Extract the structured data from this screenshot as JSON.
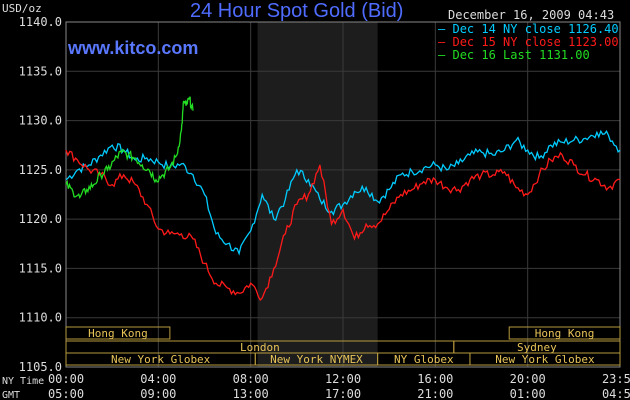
{
  "header": {
    "title": "24 Hour Spot Gold (Bid)",
    "site": "www.kitco.com",
    "y_unit": "USD/oz",
    "timestamp": "December 16, 2009 04:43"
  },
  "legend": [
    {
      "text": "Dec 14 NY close 1126.40",
      "color": "#00ccff"
    },
    {
      "text": "Dec 15 NY close 1123.00",
      "color": "#ff1a1a"
    },
    {
      "text": "Dec 16 Last 1131.00",
      "color": "#22dd22"
    }
  ],
  "axis_labels": {
    "row1_name": "NY Time",
    "row2_name": "GMT"
  },
  "chart_data": {
    "type": "line",
    "title": "24 Hour Spot Gold (Bid)",
    "ylabel": "USD/oz",
    "ylim": [
      1105,
      1140
    ],
    "y_ticks": [
      "1105.0",
      "1110.0",
      "1115.0",
      "1120.0",
      "1125.0",
      "1130.0",
      "1135.0",
      "1140.0"
    ],
    "xlim": [
      0,
      24
    ],
    "x_ticks_ny": [
      "00:00",
      "04:00",
      "08:00",
      "12:00",
      "16:00",
      "20:00",
      "23:59"
    ],
    "x_ticks_gmt": [
      "05:00",
      "09:00",
      "13:00",
      "17:00",
      "21:00",
      "01:00",
      "04:59"
    ],
    "grid": true,
    "legend_position": "top-right",
    "shaded_region": [
      8.3,
      13.5
    ],
    "sessions": [
      {
        "label": "Hong Kong",
        "row": 0,
        "start": 0,
        "end": 4.5
      },
      {
        "label": "Hong Kong",
        "row": 0,
        "start": 19.2,
        "end": 24
      },
      {
        "label": "London",
        "row": 1,
        "start": 0,
        "end": 16.8
      },
      {
        "label": "Sydney",
        "row": 1,
        "start": 16.8,
        "end": 24
      },
      {
        "label": "New York Globex",
        "row": 2,
        "start": 0,
        "end": 8.2
      },
      {
        "label": "New York NYMEX",
        "row": 2,
        "start": 8.2,
        "end": 13.5
      },
      {
        "label": "NY Globex",
        "row": 2,
        "start": 13.5,
        "end": 17.5
      },
      {
        "label": "New York Globex",
        "row": 2,
        "start": 17.5,
        "end": 24
      }
    ],
    "series": [
      {
        "name": "Dec 14 NY close 1126.40",
        "color": "#00ccff",
        "x": [
          0,
          0.5,
          1,
          1.5,
          2,
          2.5,
          3,
          3.5,
          4,
          4.5,
          5,
          5.5,
          6,
          6.5,
          7,
          7.5,
          8,
          8.5,
          9,
          9.5,
          10,
          10.5,
          11,
          11.5,
          12,
          12.5,
          13,
          13.5,
          14,
          14.5,
          15,
          15.5,
          16,
          16.5,
          17,
          17.5,
          18,
          18.5,
          19,
          19.5,
          20,
          20.5,
          21,
          21.5,
          22,
          22.5,
          23,
          23.5,
          24
        ],
        "values": [
          1124,
          1125,
          1125.5,
          1126.5,
          1127.5,
          1127,
          1126,
          1126.2,
          1125.8,
          1125.3,
          1125.6,
          1124.5,
          1122.5,
          1118.5,
          1117.5,
          1116.5,
          1118.8,
          1122.5,
          1120,
          1122,
          1125,
          1124,
          1122,
          1120.8,
          1121.5,
          1122.8,
          1123.2,
          1121.8,
          1123,
          1124.5,
          1124.8,
          1125.2,
          1125.5,
          1125,
          1125.6,
          1126.5,
          1126.8,
          1126.5,
          1127,
          1128,
          1127,
          1126.2,
          1127.5,
          1127.8,
          1128,
          1128.2,
          1128.8,
          1128.5,
          1127
        ]
      },
      {
        "name": "Dec 15 NY close 1123.00",
        "color": "#ff1a1a",
        "x": [
          0,
          0.5,
          1,
          1.5,
          2,
          2.5,
          3,
          3.5,
          4,
          4.5,
          5,
          5.5,
          6,
          6.5,
          7,
          7.5,
          8,
          8.5,
          9,
          9.5,
          10,
          10.5,
          11,
          11.5,
          12,
          12.5,
          13,
          13.5,
          14,
          14.5,
          15,
          15.5,
          16,
          16.5,
          17,
          17.5,
          18,
          18.5,
          19,
          19.5,
          20,
          20.5,
          21,
          21.5,
          22,
          22.5,
          23,
          23.5,
          24
        ],
        "values": [
          1127,
          1126,
          1125,
          1124.5,
          1123.5,
          1124.5,
          1123.5,
          1121.5,
          1119,
          1118.5,
          1118.5,
          1118,
          1115.5,
          1113.5,
          1113,
          1112.5,
          1113.5,
          1112,
          1115,
          1118.5,
          1121.5,
          1122.5,
          1125.5,
          1119.5,
          1121,
          1118,
          1119.5,
          1119.5,
          1121,
          1122.5,
          1123,
          1123.8,
          1124,
          1123.2,
          1123,
          1124,
          1124.5,
          1124.5,
          1124.8,
          1123.2,
          1122.5,
          1124.5,
          1126,
          1126.5,
          1125.5,
          1124.5,
          1124,
          1123.2,
          1124
        ]
      },
      {
        "name": "Dec 16 Last 1131.00",
        "color": "#22dd22",
        "x": [
          0,
          0.3,
          0.6,
          0.9,
          1.2,
          1.5,
          1.8,
          2.1,
          2.4,
          2.7,
          3,
          3.3,
          3.6,
          3.9,
          4.2,
          4.5,
          4.8,
          5,
          5.1,
          5.2,
          5.35,
          5.5
        ],
        "values": [
          1123.5,
          1122.8,
          1122.2,
          1123,
          1123.5,
          1124.5,
          1125,
          1126,
          1126.8,
          1126.5,
          1126.2,
          1125.5,
          1125,
          1124,
          1124.5,
          1125.2,
          1126.5,
          1129,
          1132,
          1131.5,
          1132.2,
          1131
        ]
      }
    ]
  }
}
